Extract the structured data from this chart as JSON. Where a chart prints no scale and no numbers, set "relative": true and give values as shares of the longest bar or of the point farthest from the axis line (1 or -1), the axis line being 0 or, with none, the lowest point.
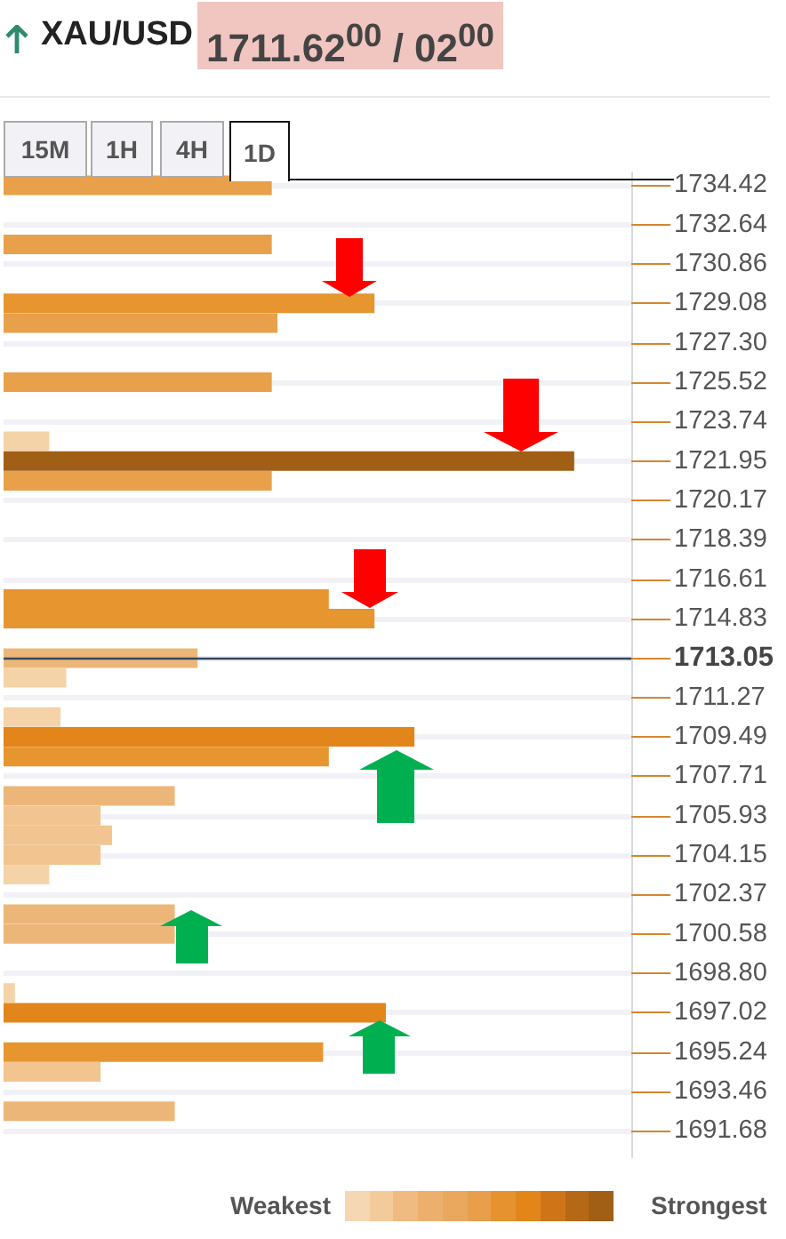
{
  "chart_data": {
    "type": "bar",
    "orientation": "horizontal",
    "relative": true,
    "title": "XAU/USD",
    "subtitle": "1711.62$^{00}$ / 02$^{00}$",
    "annotations": [
      "15M",
      "1H",
      "4H",
      "1D",
      "Weakest",
      "Strongest"
    ],
    "x": [
      1734.42,
      1731.75,
      1729.08,
      1728.19,
      1725.52,
      1722.85,
      1721.95,
      1721.06,
      1715.72,
      1714.83,
      1713.05,
      1712.16,
      1710.38,
      1709.49,
      1708.6,
      1706.82,
      1705.93,
      1705.04,
      1704.15,
      1703.26,
      1701.48,
      1700.58,
      1697.91,
      1697.02,
      1695.24,
      1694.35,
      1692.57
    ],
    "values": [
      0.47,
      0.47,
      0.65,
      0.48,
      0.47,
      0.08,
      1,
      0.47,
      0.57,
      0.65,
      0.34,
      0.11,
      0.1,
      0.72,
      0.57,
      0.3,
      0.17,
      0.19,
      0.17,
      0.08,
      0.3,
      0.3,
      0.02,
      0.67,
      0.56,
      0.17,
      0.3
    ],
    "colors": [
      "#e9a04a",
      "#e9a04a",
      "#e6952f",
      "#e9a04a",
      "#e9a04a",
      "#f5d3a8",
      "#a05f14",
      "#e9a04a",
      "#e6952f",
      "#e6952f",
      "#edb679",
      "#f5d3a8",
      "#f5d3a8",
      "#e2861b",
      "#e6952f",
      "#edb679",
      "#f2c490",
      "#f2c490",
      "#f2c490",
      "#f5d3a8",
      "#edb679",
      "#edb679",
      "#f5d3a8",
      "#e2861b",
      "#e6952f",
      "#f2c490",
      "#edb679"
    ],
    "ylim": [
      1690.49,
      1735.0
    ],
    "yticks": [
      1734.42,
      1732.64,
      1730.86,
      1729.08,
      {
        "value": 1727.3,
        "label": "1727.30"
      },
      1725.52,
      1723.74,
      1721.95,
      1720.17,
      1718.39,
      1716.61,
      1714.83,
      1713.05,
      1711.27,
      1709.49,
      1707.71,
      1705.93,
      1704.15,
      1702.37,
      1700.58,
      {
        "value": 1698.8,
        "label": "1698.80"
      },
      1697.02,
      1695.24,
      1693.46,
      1691.68
    ],
    "ref_lines": [
      {
        "axis": "y",
        "value": 1713.05,
        "color": "#34495e"
      }
    ],
    "grid": "y"
  }
}
